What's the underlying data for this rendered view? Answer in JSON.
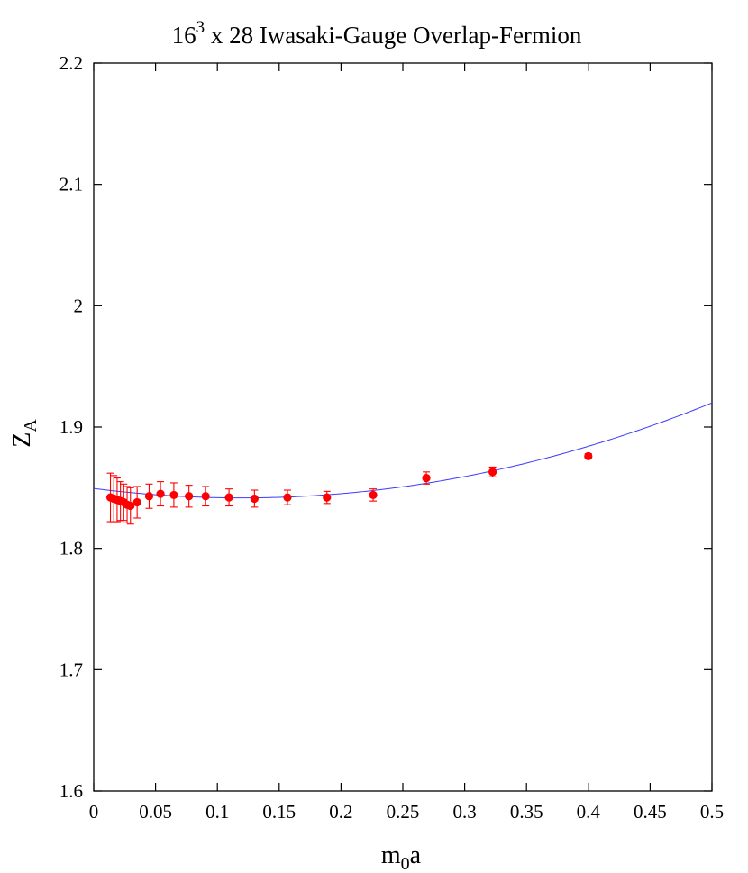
{
  "chart_data": {
    "type": "scatter",
    "title": {
      "base": "16",
      "superscript": "3",
      "rest": " x 28 Iwasaki-Gauge Overlap-Fermion"
    },
    "xlabel": {
      "base": "m",
      "subscript": "0",
      "rest": "a"
    },
    "ylabel": {
      "base": "Z",
      "subscript": "A"
    },
    "xlim": [
      0,
      0.5
    ],
    "ylim": [
      1.6,
      2.2
    ],
    "x_ticks": [
      0,
      0.05,
      0.1,
      0.15,
      0.2,
      0.25,
      0.3,
      0.35,
      0.4,
      0.45,
      0.5
    ],
    "x_tick_labels": [
      "0",
      "0.05",
      "0.1",
      "0.15",
      "0.2",
      "0.25",
      "0.3",
      "0.35",
      "0.4",
      "0.45",
      "0.5"
    ],
    "y_ticks": [
      1.6,
      1.7,
      1.8,
      1.9,
      2.0,
      2.1,
      2.2
    ],
    "y_tick_labels": [
      "1.6",
      "1.7",
      "1.8",
      "1.9",
      "2",
      "2.1",
      "2.2"
    ],
    "grid": false,
    "legend": "none",
    "colors": {
      "points": "#ff0000",
      "fit": "#3a3aff",
      "axes": "#000000"
    },
    "series": [
      {
        "kind": "points_with_errorbars",
        "points": [
          {
            "x": 0.0135,
            "y": 1.842,
            "err": 0.02
          },
          {
            "x": 0.0162,
            "y": 1.841,
            "err": 0.019
          },
          {
            "x": 0.0189,
            "y": 1.84,
            "err": 0.018
          },
          {
            "x": 0.0216,
            "y": 1.839,
            "err": 0.016
          },
          {
            "x": 0.0243,
            "y": 1.838,
            "err": 0.015
          },
          {
            "x": 0.027,
            "y": 1.836,
            "err": 0.015
          },
          {
            "x": 0.0297,
            "y": 1.835,
            "err": 0.015
          },
          {
            "x": 0.0351,
            "y": 1.838,
            "err": 0.013
          },
          {
            "x": 0.0448,
            "y": 1.843,
            "err": 0.01
          },
          {
            "x": 0.054,
            "y": 1.845,
            "err": 0.01
          },
          {
            "x": 0.0648,
            "y": 1.844,
            "err": 0.01
          },
          {
            "x": 0.077,
            "y": 1.843,
            "err": 0.009
          },
          {
            "x": 0.0905,
            "y": 1.843,
            "err": 0.008
          },
          {
            "x": 0.1094,
            "y": 1.842,
            "err": 0.007
          },
          {
            "x": 0.13,
            "y": 1.841,
            "err": 0.007
          },
          {
            "x": 0.1567,
            "y": 1.842,
            "err": 0.006
          },
          {
            "x": 0.1886,
            "y": 1.842,
            "err": 0.005
          },
          {
            "x": 0.226,
            "y": 1.844,
            "err": 0.005
          },
          {
            "x": 0.269,
            "y": 1.858,
            "err": 0.005
          },
          {
            "x": 0.3226,
            "y": 1.863,
            "err": 0.004
          },
          {
            "x": 0.4,
            "y": 1.876,
            "err": 0.002
          }
        ]
      },
      {
        "kind": "fit_curve",
        "model": "a + b*x + c*x^2",
        "coefficients": {
          "a": 1.8494,
          "b": -0.13,
          "c": 0.542
        },
        "x_range": [
          0,
          0.5
        ]
      }
    ]
  }
}
